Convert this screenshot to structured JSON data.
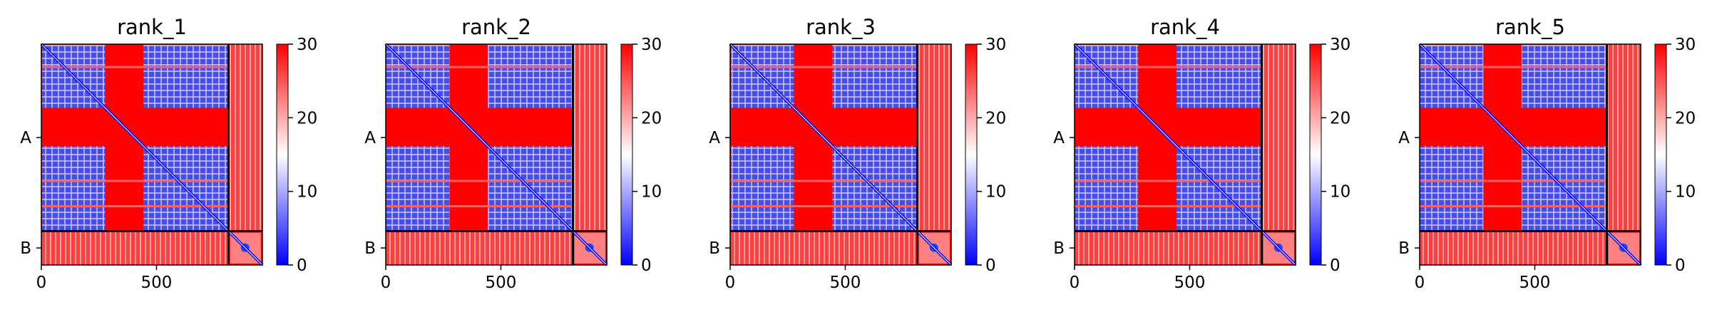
{
  "chart_data": {
    "type": "heatmap",
    "description_note": "",
    "colorbar": {
      "colors": [
        "#0000ff",
        "#ffffff",
        "#ff0000"
      ],
      "range": [
        0,
        30
      ],
      "ticks": [
        0,
        10,
        20,
        30
      ]
    },
    "axes": {
      "x_range": [
        0,
        960
      ],
      "x_ticks": [
        0,
        500
      ],
      "y_tick_labels": [
        "A",
        "B"
      ],
      "chain_boundary": 813,
      "chain_A_center": 406,
      "chain_B_center": 886
    },
    "panels": [
      {
        "title": "rank_1"
      },
      {
        "title": "rank_2"
      },
      {
        "title": "rank_3"
      },
      {
        "title": "rank_4"
      },
      {
        "title": "rank_5"
      }
    ]
  }
}
